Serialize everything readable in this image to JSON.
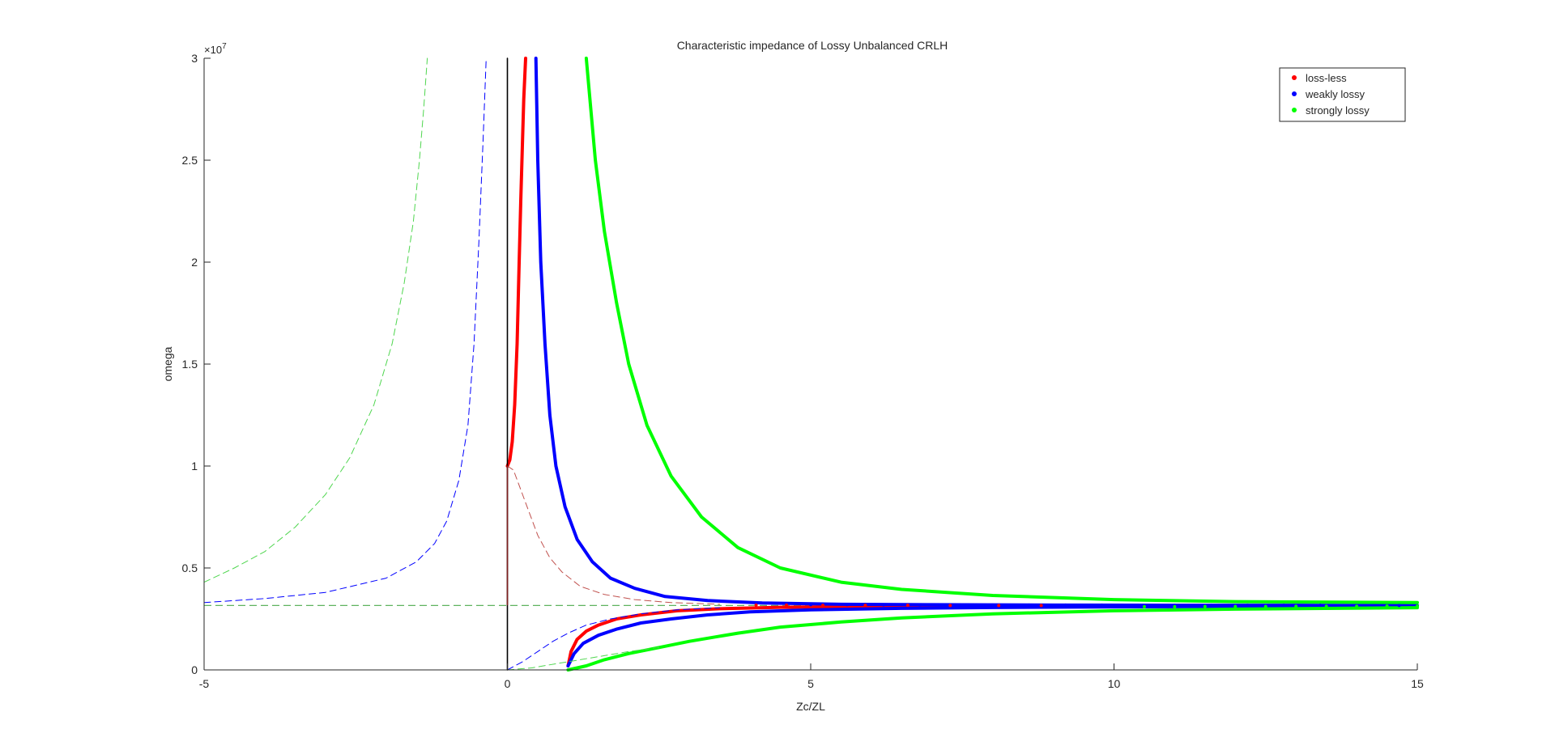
{
  "chart_data": {
    "type": "line",
    "title": "Characteristic impedance of Lossy Unbalanced CRLH",
    "xlabel": "Zc/ZL",
    "ylabel": "omega",
    "y_exponent_label": "×10",
    "y_exponent_power": "7",
    "xlim": [
      -5,
      15
    ],
    "ylim": [
      0,
      3
    ],
    "y_unit_multiplier": 10000000,
    "x_ticks": [
      -5,
      0,
      5,
      10,
      15
    ],
    "x_tick_labels": [
      "-5",
      "0",
      "5",
      "10",
      "15"
    ],
    "y_ticks": [
      0,
      0.5,
      1,
      1.5,
      2,
      2.5,
      3
    ],
    "y_tick_labels": [
      "0",
      "0.5",
      "1",
      "1.5",
      "2",
      "2.5",
      "3"
    ],
    "grid": false,
    "legend_position": "top-right",
    "legend": [
      {
        "name": "loss-less",
        "color": "#ff0000"
      },
      {
        "name": "weakly lossy",
        "color": "#0000ff"
      },
      {
        "name": "strongly lossy",
        "color": "#00ff00"
      }
    ],
    "asymptote": {
      "y": 0.316,
      "color": "#5fb35f"
    },
    "series": [
      {
        "name": "loss-less",
        "color": "#ff0000",
        "style": "solid",
        "segments": [
          {
            "x": [
              0.0,
              0.04,
              0.08,
              0.12,
              0.16,
              0.19,
              0.22,
              0.25,
              0.27,
              0.3
            ],
            "y": [
              1.0,
              1.03,
              1.12,
              1.3,
              1.6,
              1.95,
              2.3,
              2.6,
              2.8,
              3.0
            ]
          },
          {
            "x": [
              1.0,
              1.05,
              1.15,
              1.3,
              1.5,
              1.8,
              2.2,
              2.8,
              3.5,
              4.5,
              6.0,
              8.0,
              9.5
            ],
            "y": [
              0.02,
              0.09,
              0.15,
              0.19,
              0.22,
              0.25,
              0.27,
              0.29,
              0.3,
              0.307,
              0.312,
              0.315,
              0.316
            ]
          }
        ]
      },
      {
        "name": "weakly lossy",
        "color": "#0000ff",
        "style": "solid",
        "segments": [
          {
            "x": [
              0.47,
              0.5,
              0.55,
              0.62,
              0.7,
              0.8,
              0.95,
              1.15,
              1.4,
              1.7,
              2.1,
              2.6,
              3.3,
              4.2,
              5.5,
              7.0,
              9.0,
              11.0,
              13.0,
              15.0
            ],
            "y": [
              3.0,
              2.5,
              2.0,
              1.6,
              1.25,
              1.0,
              0.8,
              0.64,
              0.53,
              0.45,
              0.4,
              0.36,
              0.34,
              0.328,
              0.322,
              0.32,
              0.318,
              0.317,
              0.317,
              0.316
            ]
          },
          {
            "x": [
              1.0,
              1.1,
              1.25,
              1.5,
              1.8,
              2.2,
              2.7,
              3.3,
              4.0,
              5.0,
              6.5,
              8.0,
              10.0,
              12.0,
              15.0
            ],
            "y": [
              0.02,
              0.08,
              0.13,
              0.17,
              0.2,
              0.23,
              0.25,
              0.27,
              0.285,
              0.295,
              0.302,
              0.306,
              0.309,
              0.311,
              0.313
            ]
          }
        ]
      },
      {
        "name": "strongly lossy",
        "color": "#00ff00",
        "style": "solid",
        "segments": [
          {
            "x": [
              1.3,
              1.45,
              1.6,
              1.8,
              2.0,
              2.3,
              2.7,
              3.2,
              3.8,
              4.5,
              5.5,
              6.5,
              8.0,
              10.0,
              12.0,
              15.0
            ],
            "y": [
              3.0,
              2.5,
              2.15,
              1.8,
              1.5,
              1.2,
              0.95,
              0.75,
              0.6,
              0.5,
              0.43,
              0.395,
              0.365,
              0.345,
              0.335,
              0.33
            ]
          },
          {
            "x": [
              1.0,
              1.3,
              1.6,
              2.0,
              2.5,
              3.0,
              3.8,
              4.5,
              5.5,
              6.5,
              8.0,
              10.0,
              12.0,
              15.0
            ],
            "y": [
              0.0,
              0.02,
              0.05,
              0.08,
              0.11,
              0.14,
              0.18,
              0.21,
              0.235,
              0.255,
              0.275,
              0.29,
              0.298,
              0.305
            ]
          }
        ]
      },
      {
        "name": "loss-less (dashed)",
        "color": "#c0504d",
        "style": "dashed",
        "segments": [
          {
            "x": [
              0.0,
              0.1,
              0.2,
              0.35,
              0.5,
              0.7,
              0.9,
              1.2,
              1.6,
              2.1,
              2.7,
              3.5
            ],
            "y": [
              1.0,
              0.98,
              0.9,
              0.78,
              0.66,
              0.55,
              0.48,
              0.41,
              0.37,
              0.345,
              0.33,
              0.322
            ]
          }
        ]
      },
      {
        "name": "weakly lossy (dashed)",
        "color": "#0000ff",
        "style": "dashed",
        "segments": [
          {
            "x": [
              -5.0,
              -4.0,
              -3.0,
              -2.0,
              -1.5,
              -1.2,
              -1.0,
              -0.8,
              -0.65,
              -0.55,
              -0.47,
              -0.4,
              -0.35
            ],
            "y": [
              0.33,
              0.35,
              0.38,
              0.45,
              0.53,
              0.62,
              0.73,
              0.93,
              1.2,
              1.6,
              2.1,
              2.6,
              3.0
            ]
          },
          {
            "x": [
              0.0,
              0.25,
              0.5,
              0.75,
              1.0,
              1.3,
              1.7,
              2.2,
              2.8,
              3.5
            ],
            "y": [
              0.0,
              0.04,
              0.09,
              0.14,
              0.18,
              0.22,
              0.25,
              0.275,
              0.295,
              0.305
            ]
          }
        ]
      },
      {
        "name": "strongly lossy (dashed)",
        "color": "#4fd64f",
        "style": "dashed",
        "segments": [
          {
            "x": [
              -5.0,
              -4.5,
              -4.0,
              -3.5,
              -3.0,
              -2.6,
              -2.2,
              -1.9,
              -1.7,
              -1.55,
              -1.45,
              -1.38,
              -1.32
            ],
            "y": [
              0.43,
              0.5,
              0.58,
              0.7,
              0.86,
              1.04,
              1.3,
              1.6,
              1.9,
              2.2,
              2.5,
              2.75,
              3.0
            ]
          },
          {
            "x": [
              0.0,
              0.4,
              0.8,
              1.2,
              1.6,
              2.0,
              2.5
            ],
            "y": [
              0.0,
              0.01,
              0.03,
              0.05,
              0.07,
              0.09,
              0.11
            ]
          }
        ]
      },
      {
        "name": "vertical black",
        "color": "#000000",
        "style": "solid",
        "segments": [
          {
            "x": [
              0.0,
              0.0
            ],
            "y": [
              0.0,
              3.0
            ]
          }
        ]
      },
      {
        "name": "vertical dark red",
        "color": "#7f1f1f",
        "style": "solid",
        "segments": [
          {
            "x": [
              0.0,
              0.0
            ],
            "y": [
              0.32,
              1.0
            ]
          }
        ]
      }
    ],
    "scatter": [
      {
        "name": "loss-less points",
        "color": "#ff0000",
        "x": [
          4.1,
          4.6,
          5.2,
          5.9,
          6.6,
          7.3,
          8.1,
          8.8
        ],
        "y": [
          0.318,
          0.318,
          0.317,
          0.317,
          0.317,
          0.316,
          0.316,
          0.316
        ]
      },
      {
        "name": "weakly lossy points",
        "color": "#0000ff",
        "x": [
          5.0,
          5.6,
          6.2,
          6.8,
          7.4,
          8.0,
          8.6,
          9.2,
          9.8,
          10.4,
          11.0,
          11.6,
          12.2,
          12.8,
          13.4,
          14.0,
          14.7
        ],
        "y": [
          0.32,
          0.32,
          0.319,
          0.319,
          0.319,
          0.318,
          0.318,
          0.318,
          0.318,
          0.317,
          0.317,
          0.317,
          0.317,
          0.317,
          0.317,
          0.316,
          0.316
        ]
      },
      {
        "name": "strongly lossy points",
        "color": "#00ff00",
        "x": [
          10.5,
          11.0,
          11.5,
          12.0,
          12.5,
          13.0,
          13.5,
          14.0,
          14.5,
          15.0
        ],
        "y": [
          0.31,
          0.31,
          0.311,
          0.311,
          0.311,
          0.312,
          0.312,
          0.312,
          0.313,
          0.313
        ]
      }
    ]
  }
}
